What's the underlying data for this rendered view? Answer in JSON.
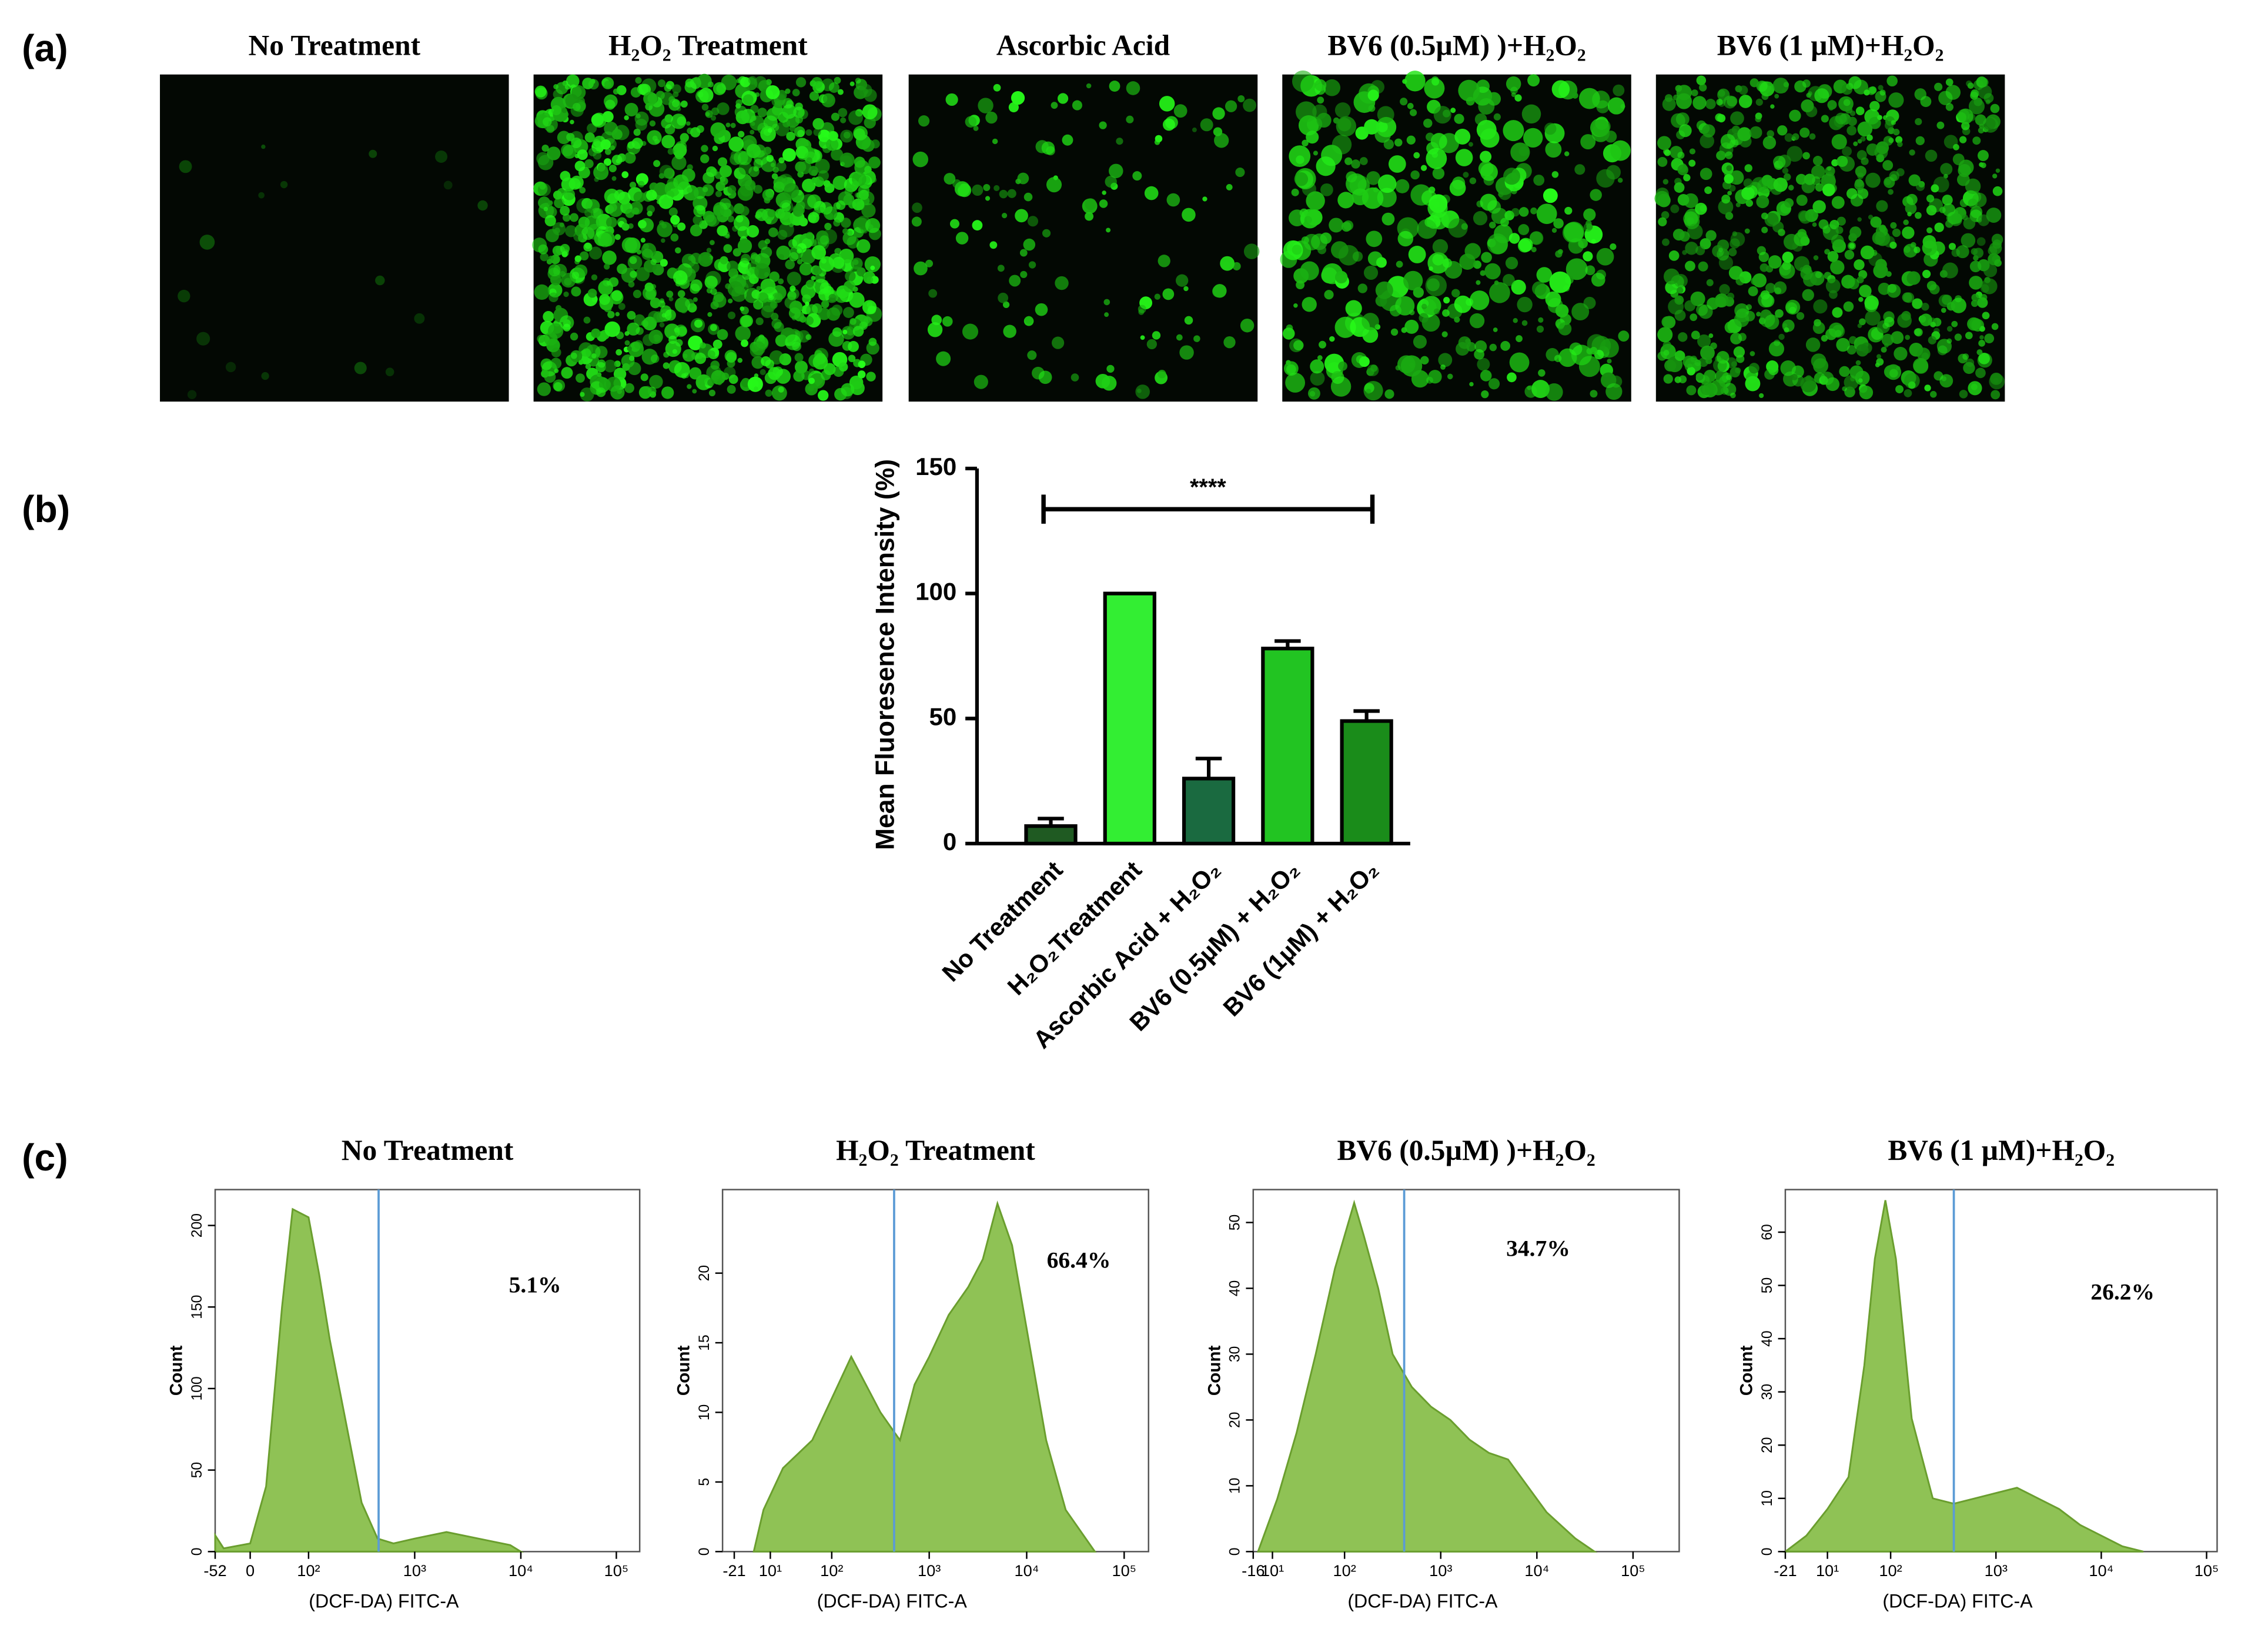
{
  "panel_labels": [
    "(a)",
    "(b)",
    "(c)"
  ],
  "panel_a": {
    "titles": [
      "No Treatment",
      "H₂O₂  Treatment",
      "Ascorbic Acid",
      "BV6 (0.5µM) )+H₂O₂",
      "BV6 (1 µM)+H₂O₂"
    ]
  },
  "chart_data": [
    {
      "type": "bar",
      "ylabel": "Mean Fluoresence Intensity (%)",
      "categories": [
        "No Treatment",
        "H₂O₂Treatment",
        "Ascorbic Acid + H₂O₂",
        "BV6 (0.5µM) + H₂O₂",
        "BV6 (1µM) + H₂O₂"
      ],
      "values": [
        7,
        100,
        26,
        78,
        49
      ],
      "errors": [
        3,
        0,
        8,
        3,
        4
      ],
      "colors": [
        "#1f5a22",
        "#33ee33",
        "#1a6a40",
        "#22c422",
        "#1a8c1a"
      ],
      "ylim": [
        0,
        150
      ],
      "yticks": [
        0,
        50,
        100,
        150
      ],
      "annotation": "****"
    },
    {
      "type": "area",
      "title": "No Treatment",
      "xlabel": "(DCF-DA) FITC-A",
      "ylabel": "Count",
      "annotation": "5.1%",
      "color": "#8fc255",
      "gate": 2.66,
      "xlim": [
        1.12,
        5.12
      ],
      "ylim": [
        0,
        222
      ],
      "yticks": [
        0,
        50,
        100,
        150,
        200
      ],
      "xticks": [
        {
          "value": 1.12,
          "label": "-52"
        },
        {
          "value": 1.45,
          "label": "0"
        },
        {
          "value": 2,
          "label": "10²"
        },
        {
          "value": 3,
          "label": "10³"
        },
        {
          "value": 4,
          "label": "10⁴"
        },
        {
          "value": 4.9,
          "label": "10⁵"
        }
      ],
      "x": [
        1.12,
        1.2,
        1.45,
        1.6,
        1.75,
        1.85,
        2.0,
        2.1,
        2.2,
        2.35,
        2.5,
        2.65,
        2.8,
        3.0,
        3.3,
        3.6,
        3.9,
        4.0
      ],
      "values": [
        10,
        2,
        5,
        40,
        150,
        210,
        205,
        170,
        130,
        80,
        30,
        8,
        5,
        8,
        12,
        8,
        4,
        0
      ]
    },
    {
      "type": "area",
      "title": "H₂O₂  Treatment",
      "xlabel": "(DCF-DA) FITC-A",
      "ylabel": "Count",
      "annotation": "66.4%",
      "color": "#8fc255",
      "gate": 2.64,
      "xlim": [
        0.88,
        5.25
      ],
      "ylim": [
        0,
        26
      ],
      "yticks": [
        0,
        5,
        10,
        15,
        20
      ],
      "xticks": [
        {
          "value": 1.0,
          "label": "-21"
        },
        {
          "value": 1.37,
          "label": "10¹"
        },
        {
          "value": 2,
          "label": "10²"
        },
        {
          "value": 3,
          "label": "10³"
        },
        {
          "value": 4,
          "label": "10⁴"
        },
        {
          "value": 5,
          "label": "10⁵"
        }
      ],
      "x": [
        1.2,
        1.3,
        1.5,
        1.8,
        2.0,
        2.2,
        2.35,
        2.5,
        2.7,
        2.85,
        3.0,
        3.2,
        3.4,
        3.55,
        3.7,
        3.85,
        4.0,
        4.2,
        4.4,
        4.6,
        4.7
      ],
      "values": [
        0,
        3,
        6,
        8,
        11,
        14,
        12,
        10,
        8,
        12,
        14,
        17,
        19,
        21,
        25,
        22,
        16,
        8,
        3,
        1,
        0
      ]
    },
    {
      "type": "area",
      "title": "BV6 (0.5µM) )+H₂O₂",
      "xlabel": "(DCF-DA) FITC-A",
      "ylabel": "Count",
      "annotation": "34.7%",
      "color": "#8fc255",
      "gate": 2.62,
      "xlim": [
        1.05,
        5.48
      ],
      "ylim": [
        0,
        55
      ],
      "yticks": [
        0,
        10,
        20,
        30,
        40,
        50
      ],
      "xticks": [
        {
          "value": 1.05,
          "label": "-16"
        },
        {
          "value": 1.25,
          "label": "10¹"
        },
        {
          "value": 2,
          "label": "10²"
        },
        {
          "value": 3,
          "label": "10³"
        },
        {
          "value": 4,
          "label": "10⁴"
        },
        {
          "value": 5,
          "label": "10⁵"
        }
      ],
      "x": [
        1.1,
        1.3,
        1.5,
        1.7,
        1.9,
        2.1,
        2.2,
        2.35,
        2.5,
        2.7,
        2.9,
        3.1,
        3.3,
        3.5,
        3.7,
        3.9,
        4.1,
        4.4,
        4.6
      ],
      "values": [
        0,
        8,
        18,
        30,
        43,
        53,
        48,
        40,
        30,
        25,
        22,
        20,
        17,
        15,
        14,
        10,
        6,
        2,
        0
      ]
    },
    {
      "type": "area",
      "title": "BV6 (1 µM)+H₂O₂",
      "xlabel": "(DCF-DA) FITC-A",
      "ylabel": "Count",
      "annotation": "26.2%",
      "color": "#8fc255",
      "gate": 2.6,
      "xlim": [
        1.0,
        5.1
      ],
      "ylim": [
        0,
        68
      ],
      "yticks": [
        0,
        10,
        20,
        30,
        40,
        50,
        60
      ],
      "xticks": [
        {
          "value": 1.0,
          "label": "-21"
        },
        {
          "value": 1.4,
          "label": "10¹"
        },
        {
          "value": 2,
          "label": "10²"
        },
        {
          "value": 3,
          "label": "10³"
        },
        {
          "value": 4,
          "label": "10⁴"
        },
        {
          "value": 5,
          "label": "10⁵"
        }
      ],
      "x": [
        1.0,
        1.2,
        1.4,
        1.6,
        1.75,
        1.85,
        1.95,
        2.05,
        2.2,
        2.4,
        2.6,
        2.8,
        3.0,
        3.2,
        3.4,
        3.6,
        3.8,
        4.0,
        4.2,
        4.4
      ],
      "values": [
        0,
        3,
        8,
        14,
        35,
        55,
        66,
        55,
        25,
        10,
        9,
        10,
        11,
        12,
        10,
        8,
        5,
        3,
        1,
        0
      ]
    }
  ]
}
